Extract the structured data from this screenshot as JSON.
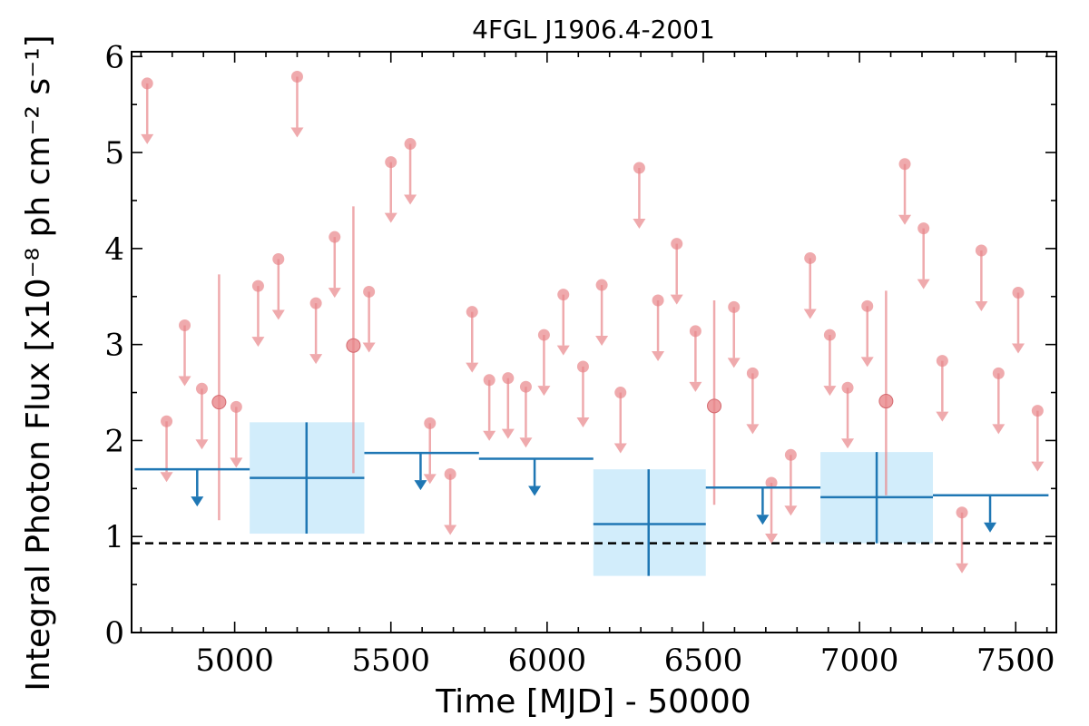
{
  "chart_data": {
    "type": "scatter",
    "title": "4FGL J1906.4-2001",
    "xlabel": "Time [MJD] - 50000",
    "ylabel": "Integral Photon Flux [x10⁻⁸ ph cm⁻² s⁻¹]",
    "xlim": [
      4670,
      7630
    ],
    "ylim": [
      0,
      6.05
    ],
    "x_ticks": [
      5000,
      5500,
      6000,
      6500,
      7000,
      7500
    ],
    "y_ticks": [
      0,
      1,
      2,
      3,
      4,
      5,
      6
    ],
    "reference_level": 0.93,
    "colors": {
      "monthly": "#e8868a",
      "binned": "#1f77b4",
      "binned_error_box": "#d2edfb",
      "reference_line": "#000000"
    },
    "series": [
      {
        "upper_limits": [
          {
            "x": 4720,
            "y": 5.72
          },
          {
            "x": 4782,
            "y": 2.2
          },
          {
            "x": 4840,
            "y": 3.2
          },
          {
            "x": 4895,
            "y": 2.54
          },
          {
            "x": 5005,
            "y": 2.35
          },
          {
            "x": 5075,
            "y": 3.61
          },
          {
            "x": 5140,
            "y": 3.89
          },
          {
            "x": 5200,
            "y": 5.79
          },
          {
            "x": 5260,
            "y": 3.43
          },
          {
            "x": 5320,
            "y": 4.12
          },
          {
            "x": 5430,
            "y": 3.55
          },
          {
            "x": 5500,
            "y": 4.9
          },
          {
            "x": 5562,
            "y": 5.09
          },
          {
            "x": 5625,
            "y": 2.18
          },
          {
            "x": 5690,
            "y": 1.65
          },
          {
            "x": 5760,
            "y": 3.34
          },
          {
            "x": 5815,
            "y": 2.63
          },
          {
            "x": 5875,
            "y": 2.65
          },
          {
            "x": 5932,
            "y": 2.56
          },
          {
            "x": 5990,
            "y": 3.1
          },
          {
            "x": 6052,
            "y": 3.52
          },
          {
            "x": 6115,
            "y": 2.77
          },
          {
            "x": 6175,
            "y": 3.62
          },
          {
            "x": 6235,
            "y": 2.5
          },
          {
            "x": 6295,
            "y": 4.84
          },
          {
            "x": 6355,
            "y": 3.46
          },
          {
            "x": 6415,
            "y": 4.05
          },
          {
            "x": 6475,
            "y": 3.14
          },
          {
            "x": 6598,
            "y": 3.39
          },
          {
            "x": 6658,
            "y": 2.7
          },
          {
            "x": 6718,
            "y": 1.56
          },
          {
            "x": 6780,
            "y": 1.85
          },
          {
            "x": 6842,
            "y": 3.9
          },
          {
            "x": 6905,
            "y": 3.1
          },
          {
            "x": 6962,
            "y": 2.55
          },
          {
            "x": 7025,
            "y": 3.4
          },
          {
            "x": 7145,
            "y": 4.88
          },
          {
            "x": 7205,
            "y": 4.21
          },
          {
            "x": 7265,
            "y": 2.83
          },
          {
            "x": 7328,
            "y": 1.25
          },
          {
            "x": 7390,
            "y": 3.98
          },
          {
            "x": 7445,
            "y": 2.7
          },
          {
            "x": 7508,
            "y": 3.54
          },
          {
            "x": 7570,
            "y": 2.31
          }
        ],
        "detections": [
          {
            "x": 4950,
            "y": 2.4,
            "y_low": 1.17,
            "y_high": 3.73
          },
          {
            "x": 5380,
            "y": 2.99,
            "y_low": 1.66,
            "y_high": 4.44
          },
          {
            "x": 6535,
            "y": 2.36,
            "y_low": 1.33,
            "y_high": 3.46
          },
          {
            "x": 7085,
            "y": 2.41,
            "y_low": 1.43,
            "y_high": 3.56
          }
        ]
      },
      {
        "upper_limits": [
          {
            "x_start": 4680,
            "x_end": 5048,
            "x_marker": 4880,
            "y": 1.7
          },
          {
            "x_start": 5415,
            "x_end": 5782,
            "x_marker": 5595,
            "y": 1.87
          },
          {
            "x_start": 5782,
            "x_end": 6148,
            "x_marker": 5960,
            "y": 1.81
          },
          {
            "x_start": 6508,
            "x_end": 6875,
            "x_marker": 6690,
            "y": 1.51
          },
          {
            "x_start": 7235,
            "x_end": 7605,
            "x_marker": 7418,
            "y": 1.43
          }
        ],
        "detections": [
          {
            "x": 5230,
            "x_start": 5048,
            "x_end": 5415,
            "y": 1.61,
            "y_low": 1.03,
            "y_high": 2.19
          },
          {
            "x": 6325,
            "x_start": 6148,
            "x_end": 6508,
            "y": 1.13,
            "y_low": 0.59,
            "y_high": 1.7
          },
          {
            "x": 7055,
            "x_start": 6875,
            "x_end": 7235,
            "y": 1.41,
            "y_low": 0.93,
            "y_high": 1.88
          }
        ]
      }
    ]
  }
}
